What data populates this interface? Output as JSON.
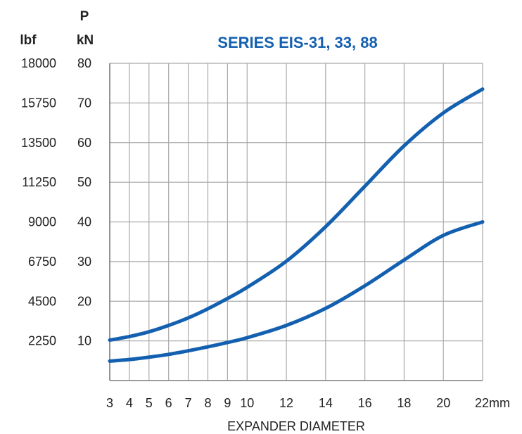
{
  "chart_data": {
    "type": "line",
    "title": "SERIES EIS-31, 33, 88",
    "xlabel": "EXPANDER DIAMETER",
    "x_unit": "mm",
    "ylabel": "P",
    "y_unit": "kN",
    "y2_unit": "lbf",
    "xlim": [
      3,
      22
    ],
    "ylim": [
      0,
      80
    ],
    "x_ticks": [
      3,
      4,
      5,
      6,
      7,
      8,
      9,
      10,
      12,
      14,
      16,
      18,
      20,
      22
    ],
    "x_tick_labels": [
      "3",
      "4",
      "5",
      "6",
      "7",
      "8",
      "9",
      "10",
      "12",
      "14",
      "16",
      "18",
      "20",
      "22mm"
    ],
    "y_ticks": [
      10,
      20,
      30,
      40,
      50,
      60,
      70,
      80
    ],
    "y_tick_labels": [
      "10",
      "20",
      "30",
      "40",
      "50",
      "60",
      "70",
      "80"
    ],
    "y2_tick_labels": [
      "2250",
      "4500",
      "6750",
      "9000",
      "11250",
      "13500",
      "15750",
      "18000"
    ],
    "grid": true,
    "line_color": "#1460b0",
    "series": [
      {
        "x": [
          3,
          4,
          5,
          6,
          7,
          8,
          9,
          10,
          12,
          14,
          16,
          18,
          20,
          22
        ],
        "y": [
          10.2,
          11.1,
          12.3,
          13.9,
          15.8,
          18.1,
          20.7,
          23.5,
          30.1,
          38.8,
          49.0,
          59.2,
          67.5,
          73.5
        ]
      },
      {
        "x": [
          3,
          4,
          5,
          6,
          7,
          8,
          9,
          10,
          12,
          14,
          16,
          18,
          20,
          22
        ],
        "y": [
          4.9,
          5.3,
          5.9,
          6.6,
          7.5,
          8.5,
          9.6,
          10.8,
          13.9,
          18.2,
          23.9,
          30.4,
          36.6,
          40.0
        ]
      }
    ]
  }
}
